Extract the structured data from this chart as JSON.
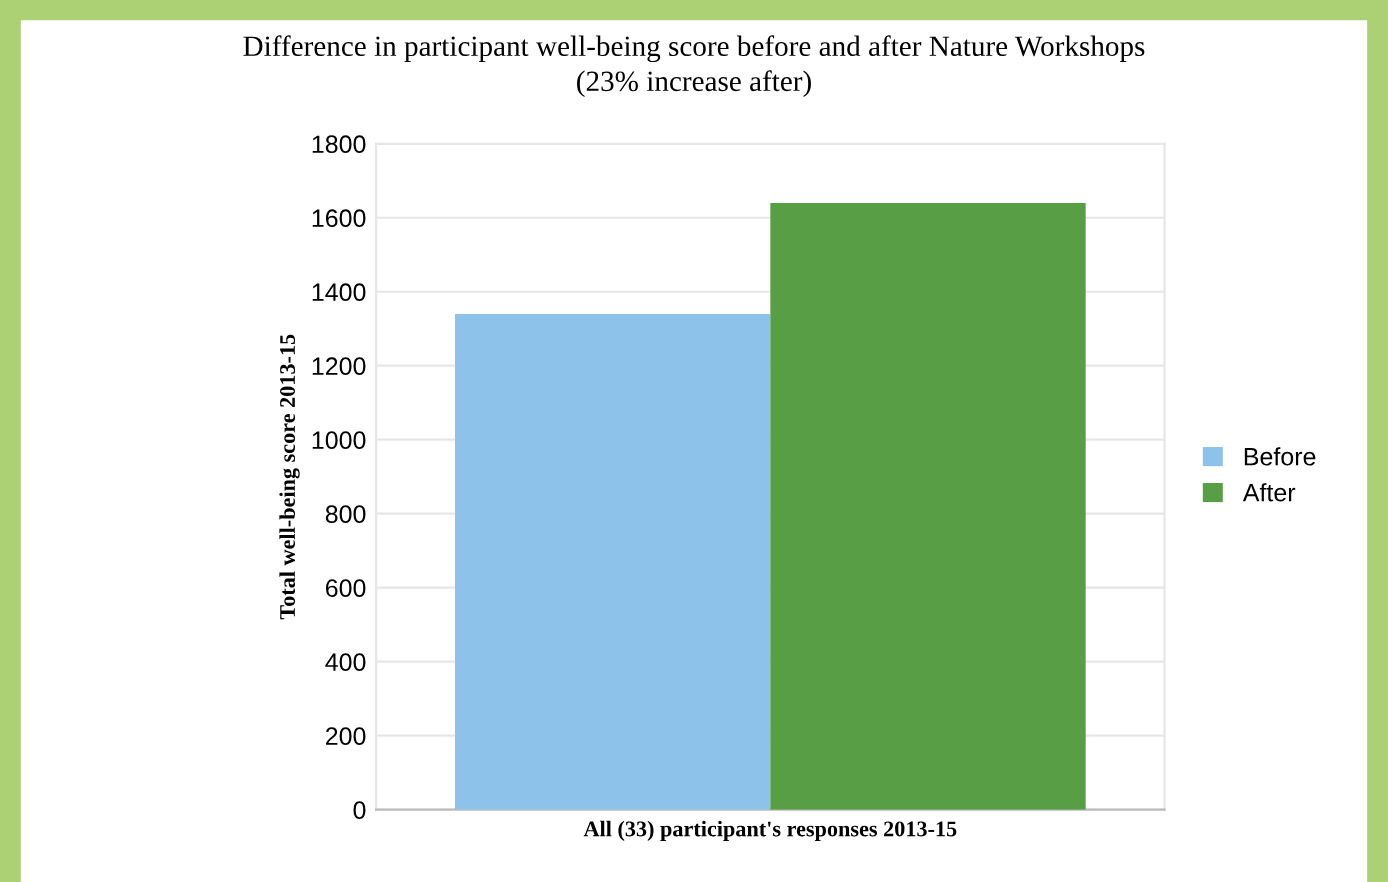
{
  "chart_data": {
    "type": "bar",
    "title": "Difference in participant well-being score before and after Nature Workshops\n(23% increase after)",
    "ylabel": "Total well-being score 2013-15",
    "categories": [
      "All (33) participant's responses 2013-15"
    ],
    "series": [
      {
        "name": "Before",
        "color": "#8dc3ea",
        "values": [
          1340
        ]
      },
      {
        "name": "After",
        "color": "#579e45",
        "values": [
          1640
        ]
      }
    ],
    "ylim": [
      0,
      1800
    ],
    "yticks": [
      0,
      200,
      400,
      600,
      800,
      1000,
      1200,
      1400,
      1600,
      1800
    ],
    "grid": "y",
    "legend": "right"
  }
}
